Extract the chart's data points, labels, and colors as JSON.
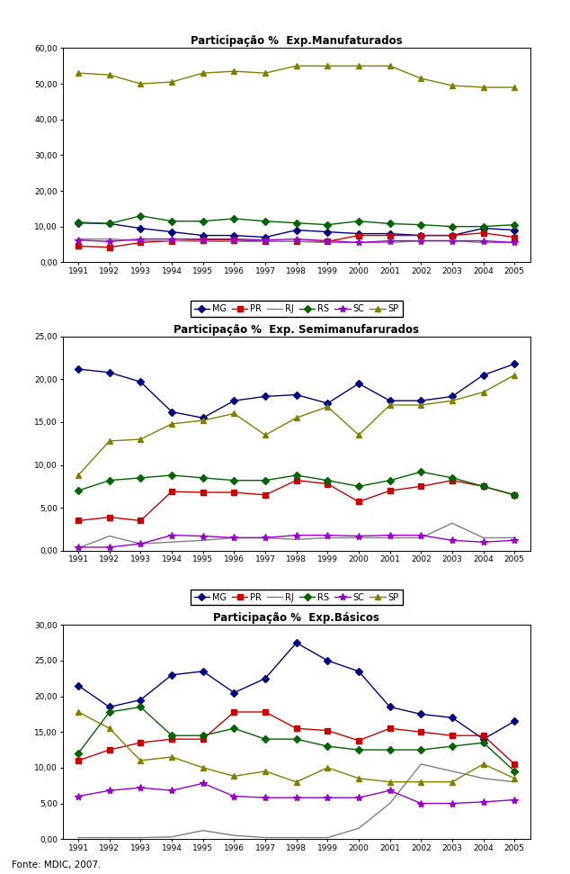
{
  "years": [
    1991,
    1992,
    1993,
    1994,
    1995,
    1996,
    1997,
    1998,
    1999,
    2000,
    2001,
    2002,
    2003,
    2004,
    2005
  ],
  "chart1_title": "Participação %  Exp.Básicos",
  "chart1": {
    "MG": [
      21.5,
      18.5,
      19.5,
      23.0,
      23.5,
      20.5,
      22.5,
      27.5,
      25.0,
      23.5,
      18.5,
      17.5,
      17.0,
      14.0,
      16.5
    ],
    "PR": [
      11.0,
      12.5,
      13.5,
      14.0,
      14.0,
      17.8,
      17.8,
      15.5,
      15.2,
      13.8,
      15.5,
      15.0,
      14.5,
      14.5,
      10.5
    ],
    "RJ": [
      0.2,
      0.2,
      0.2,
      0.3,
      1.2,
      0.5,
      0.2,
      0.2,
      0.2,
      1.5,
      5.0,
      10.5,
      9.5,
      8.5,
      8.0
    ],
    "RS": [
      12.0,
      17.8,
      18.5,
      14.5,
      14.5,
      15.5,
      14.0,
      14.0,
      13.0,
      12.5,
      12.5,
      12.5,
      13.0,
      13.5,
      9.5
    ],
    "SC": [
      6.0,
      6.8,
      7.2,
      6.8,
      7.8,
      6.0,
      5.8,
      5.8,
      5.8,
      5.8,
      6.8,
      5.0,
      5.0,
      5.2,
      5.5
    ],
    "SP": [
      17.8,
      15.5,
      11.0,
      11.5,
      10.0,
      8.8,
      9.5,
      8.0,
      10.0,
      8.5,
      8.0,
      8.0,
      8.0,
      10.5,
      8.5
    ]
  },
  "chart2_title": "Participação %  Exp. Semimanufarurados",
  "chart2": {
    "MG": [
      21.2,
      20.8,
      19.7,
      16.2,
      15.5,
      17.5,
      18.0,
      18.2,
      17.2,
      19.5,
      17.5,
      17.5,
      18.0,
      20.5,
      21.8
    ],
    "PR": [
      3.5,
      3.9,
      3.5,
      6.9,
      6.8,
      6.8,
      6.5,
      8.2,
      7.8,
      5.7,
      7.0,
      7.5,
      8.2,
      7.5,
      6.5
    ],
    "RJ": [
      0.3,
      1.7,
      0.8,
      1.0,
      1.2,
      1.5,
      1.5,
      1.3,
      1.5,
      1.5,
      1.5,
      1.5,
      3.2,
      1.5,
      1.5
    ],
    "RS": [
      7.0,
      8.2,
      8.5,
      8.8,
      8.5,
      8.2,
      8.2,
      8.8,
      8.2,
      7.5,
      8.2,
      9.2,
      8.5,
      7.5,
      6.5
    ],
    "SC": [
      0.4,
      0.4,
      0.8,
      1.8,
      1.7,
      1.5,
      1.5,
      1.8,
      1.8,
      1.7,
      1.8,
      1.8,
      1.2,
      1.0,
      1.2
    ],
    "SP": [
      8.8,
      12.8,
      13.0,
      14.8,
      15.2,
      16.0,
      13.5,
      15.5,
      16.8,
      13.5,
      17.0,
      17.0,
      17.5,
      18.5,
      20.5
    ]
  },
  "chart3_title": "Participação %  Exp.Manufaturados",
  "chart3": {
    "MG": [
      11.0,
      10.8,
      9.5,
      8.5,
      7.5,
      7.5,
      7.0,
      9.0,
      8.5,
      8.0,
      8.0,
      7.5,
      7.5,
      9.5,
      9.0
    ],
    "PR": [
      4.5,
      4.2,
      5.5,
      6.0,
      6.2,
      6.2,
      5.8,
      5.8,
      5.8,
      7.5,
      7.5,
      7.5,
      7.5,
      8.2,
      7.0
    ],
    "RJ": [
      6.5,
      6.5,
      6.0,
      6.0,
      5.8,
      5.8,
      5.8,
      5.8,
      5.5,
      5.5,
      5.5,
      6.0,
      6.0,
      5.5,
      5.5
    ],
    "RS": [
      11.2,
      10.8,
      13.0,
      11.5,
      11.5,
      12.2,
      11.5,
      11.0,
      10.5,
      11.5,
      10.8,
      10.5,
      10.0,
      10.0,
      10.5
    ],
    "SC": [
      6.2,
      5.8,
      6.5,
      6.5,
      6.5,
      6.5,
      6.2,
      6.5,
      6.0,
      5.5,
      6.0,
      6.0,
      6.0,
      6.0,
      5.5
    ],
    "SP": [
      53.0,
      52.5,
      50.0,
      50.5,
      53.0,
      53.5,
      53.0,
      55.0,
      55.0,
      55.0,
      55.0,
      51.5,
      49.5,
      49.0,
      49.0
    ]
  },
  "colors": {
    "MG": "#000080",
    "PR": "#cc0000",
    "RJ": "#808080",
    "RS": "#006400",
    "SC": "#9900cc",
    "SP": "#808000"
  },
  "markers": {
    "MG": "D",
    "PR": "s",
    "RJ": "None",
    "RS": "D",
    "SC": "*",
    "SP": "^"
  },
  "marker_sizes": {
    "MG": 4,
    "PR": 4,
    "RJ": 0,
    "RS": 4,
    "SC": 6,
    "SP": 5
  },
  "source": "Fonte: MDIC, 2007.",
  "chart1_ylim": [
    0,
    30
  ],
  "chart1_yticks": [
    0.0,
    5.0,
    10.0,
    15.0,
    20.0,
    25.0,
    30.0
  ],
  "chart2_ylim": [
    0,
    25
  ],
  "chart2_yticks": [
    0.0,
    5.0,
    10.0,
    15.0,
    20.0,
    25.0
  ],
  "chart3_ylim": [
    0,
    60
  ],
  "chart3_yticks": [
    0.0,
    10.0,
    20.0,
    30.0,
    40.0,
    50.0,
    60.0
  ]
}
